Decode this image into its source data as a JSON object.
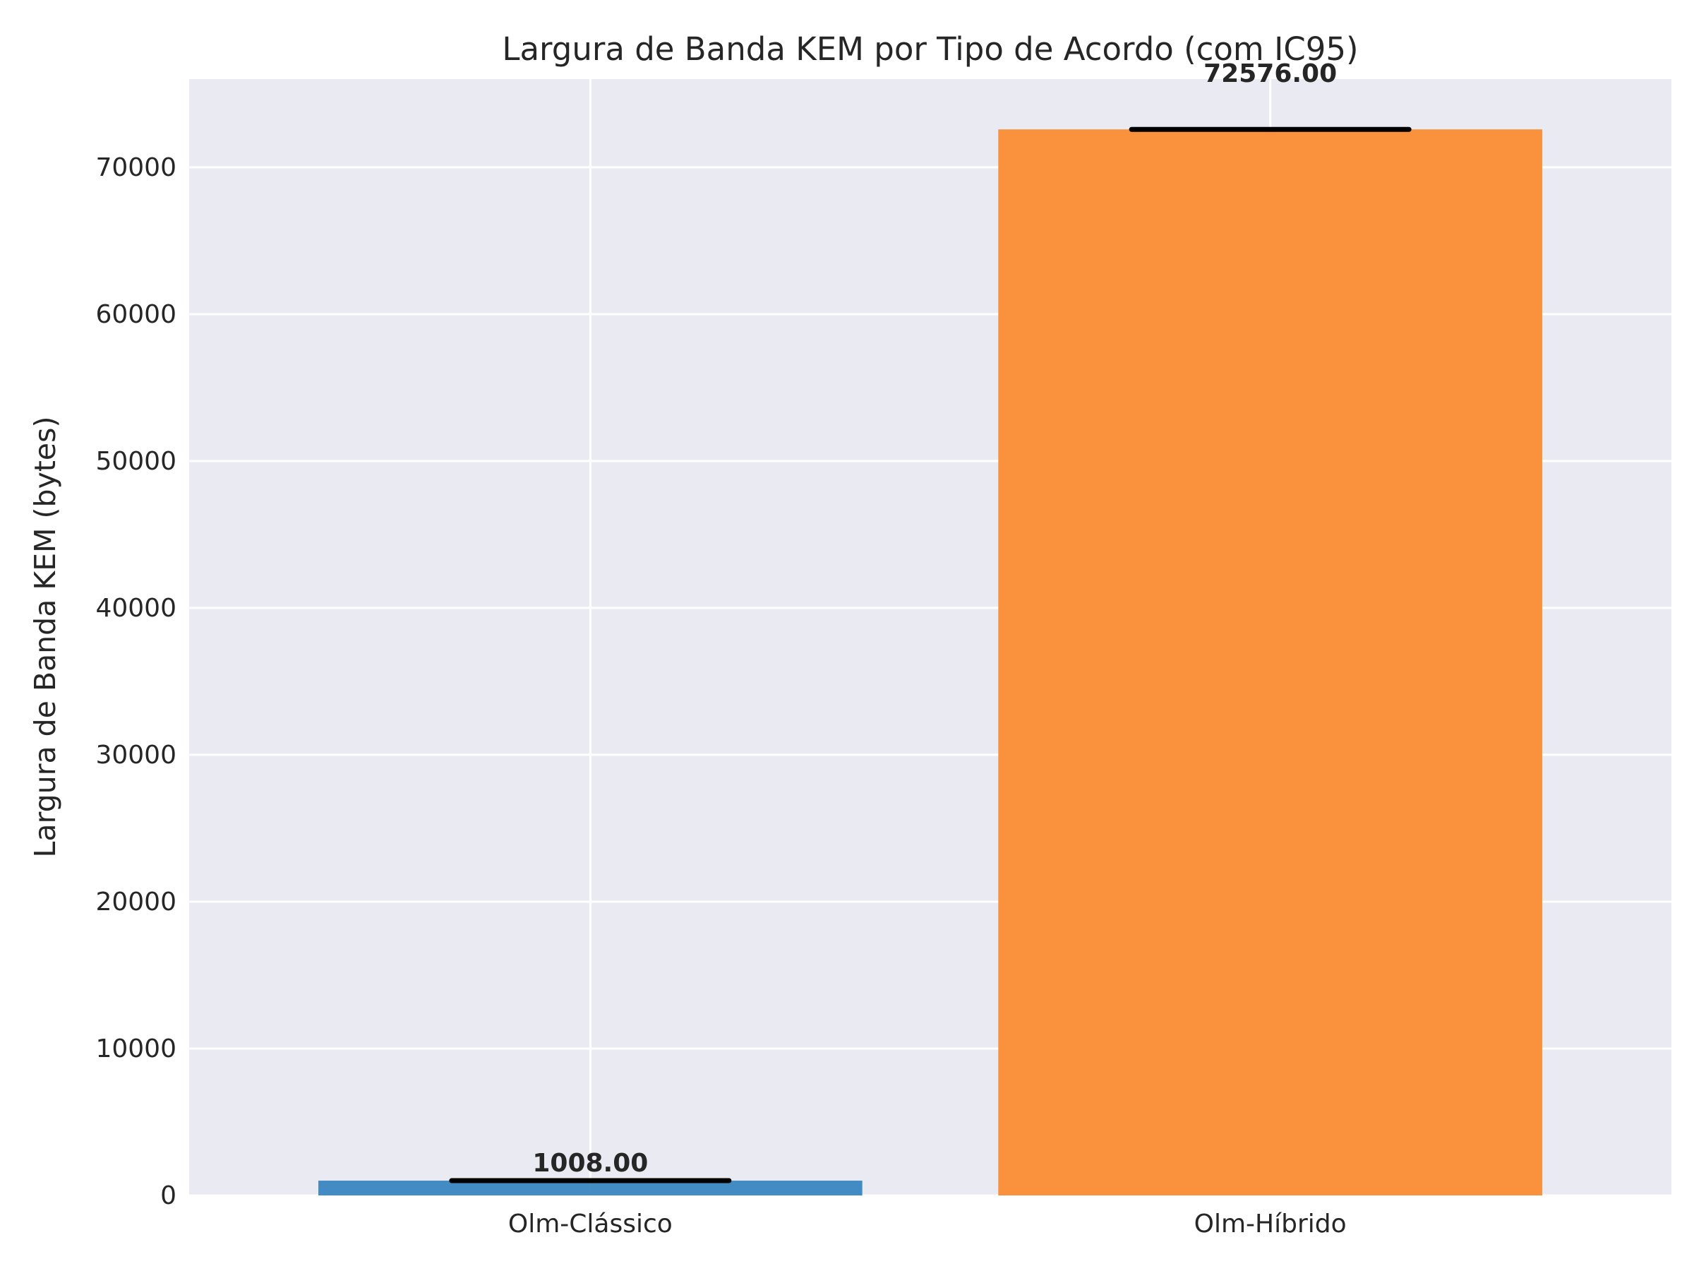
{
  "chart_data": {
    "type": "bar",
    "title": "Largura de Banda KEM por Tipo de Acordo (com IC95)",
    "xlabel": "",
    "ylabel": "Largura de Banda KEM (bytes)",
    "categories": [
      "Olm-Clássico",
      "Olm-Híbrido"
    ],
    "values": [
      1008.0,
      72576.0
    ],
    "ci_low": [
      1008.0,
      72576.0
    ],
    "ci_high": [
      1008.0,
      72576.0
    ],
    "data_labels": [
      "1008.00",
      "72576.00"
    ],
    "colors": [
      "#3a87c0",
      "#fa8c33"
    ],
    "ylim": [
      0,
      76000
    ],
    "yticks": [
      0,
      10000,
      20000,
      30000,
      40000,
      50000,
      60000,
      70000
    ],
    "ytick_labels": [
      "0",
      "10000",
      "20000",
      "30000",
      "40000",
      "50000",
      "60000",
      "70000"
    ],
    "grid": true,
    "legend": "none",
    "background": "#eaeaf2"
  }
}
